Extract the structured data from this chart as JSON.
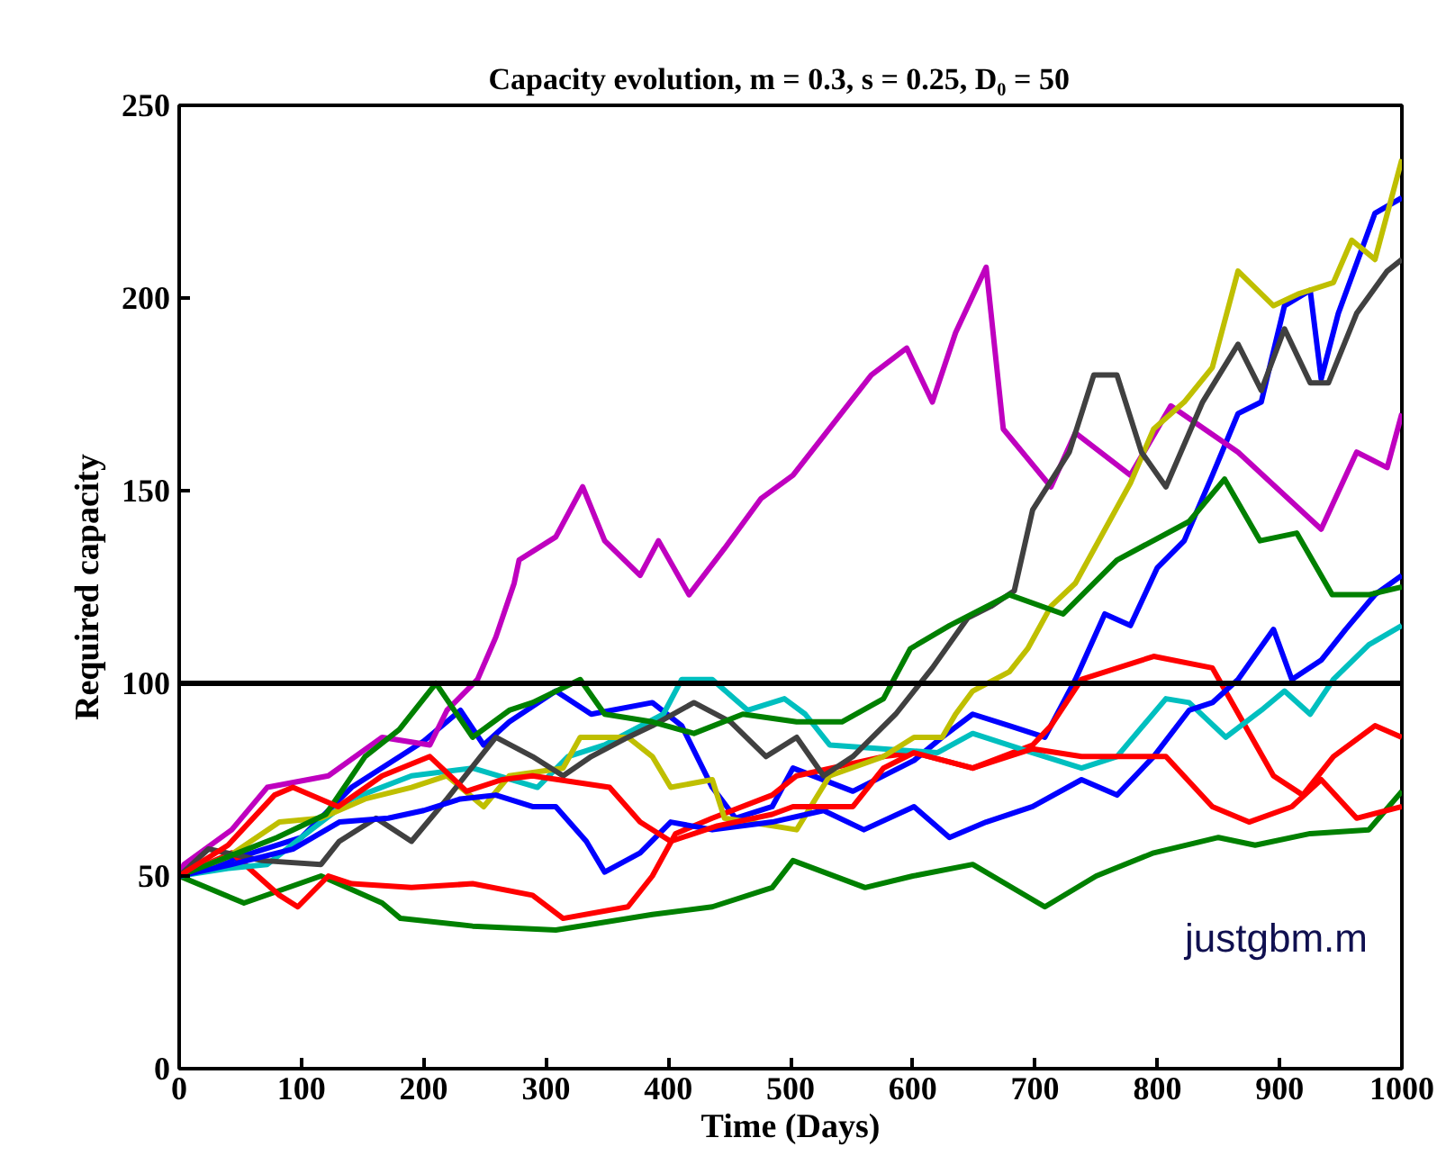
{
  "chart_data": {
    "type": "line",
    "title": "Capacity evolution,  m = 0.3,  s = 0.25,  D₀ = 50",
    "xlabel": "Time (Days)",
    "ylabel": "Required capacity",
    "xlim": [
      0,
      1000
    ],
    "ylim": [
      0,
      250
    ],
    "xticks": [
      0,
      100,
      200,
      300,
      400,
      500,
      600,
      700,
      800,
      900,
      1000
    ],
    "yticks": [
      0,
      50,
      100,
      150,
      200,
      250
    ],
    "grid": false,
    "marker": "none",
    "line_style": "solid",
    "ref_lines": [
      {
        "axis": "y",
        "value": 100,
        "color": "#000000",
        "line_style": "solid"
      }
    ],
    "annotations": [
      "justgbm.m"
    ],
    "series": [
      {
        "color": "#0000ff",
        "x": [
          0,
          50,
          100,
          141,
          200,
          230,
          249,
          270,
          308,
          337,
          387,
          411,
          436,
          455,
          485,
          502,
          551,
          601,
          624,
          649,
          679,
          708,
          733,
          757,
          778,
          800,
          822,
          845,
          866,
          885,
          904,
          925,
          934,
          948,
          978,
          1000
        ],
        "values": [
          50,
          55,
          60,
          73,
          85,
          93,
          84,
          90,
          98,
          92,
          95,
          89,
          73,
          65,
          68,
          78,
          72,
          80,
          86,
          92,
          89,
          86,
          101,
          118,
          115,
          130,
          137,
          154,
          170,
          173,
          198,
          202,
          179,
          196,
          222,
          226
        ]
      },
      {
        "color": "#008000",
        "x": [
          0,
          53,
          116,
          166,
          181,
          240,
          308,
          387,
          436,
          485,
          502,
          561,
          600,
          649,
          708,
          750,
          797,
          850,
          880,
          925,
          973,
          1000
        ],
        "values": [
          50,
          43,
          50,
          43,
          39,
          37,
          36,
          40,
          42,
          47,
          54,
          47,
          50,
          53,
          42,
          50,
          56,
          60,
          58,
          61,
          62,
          72
        ]
      },
      {
        "color": "#ff0000",
        "x": [
          0,
          43,
          82,
          97,
          122,
          141,
          190,
          240,
          289,
          314,
          367,
          387,
          406,
          436,
          485,
          505,
          576,
          601,
          649,
          698,
          713,
          738,
          797,
          845,
          895,
          919,
          944,
          978,
          1000
        ],
        "values": [
          50,
          56,
          45,
          42,
          50,
          48,
          47,
          48,
          45,
          39,
          42,
          50,
          61,
          65,
          71,
          76,
          81,
          82,
          78,
          84,
          89,
          101,
          107,
          104,
          76,
          71,
          81,
          89,
          86
        ]
      },
      {
        "color": "#00bfbf",
        "x": [
          0,
          40,
          72,
          108,
          141,
          190,
          240,
          293,
          318,
          348,
          396,
          411,
          436,
          465,
          495,
          512,
          532,
          620,
          649,
          698,
          738,
          767,
          807,
          826,
          856,
          885,
          904,
          925,
          944,
          973,
          1000
        ],
        "values": [
          50,
          52,
          53,
          62,
          70,
          76,
          78,
          73,
          81,
          84,
          92,
          101,
          101,
          93,
          96,
          92,
          84,
          82,
          87,
          82,
          78,
          81,
          96,
          95,
          86,
          93,
          98,
          92,
          101,
          110,
          115
        ]
      },
      {
        "color": "#bf00bf",
        "x": [
          0,
          4,
          43,
          72,
          122,
          166,
          205,
          219,
          244,
          259,
          274,
          278,
          308,
          330,
          348,
          377,
          392,
          417,
          446,
          476,
          502,
          566,
          595,
          616,
          635,
          660,
          674,
          713,
          733,
          778,
          811,
          866,
          934,
          963,
          988,
          1000
        ],
        "values": [
          50,
          53,
          62,
          73,
          76,
          86,
          84,
          93,
          101,
          112,
          126,
          132,
          138,
          151,
          137,
          128,
          137,
          123,
          135,
          148,
          154,
          180,
          187,
          173,
          191,
          208,
          166,
          151,
          165,
          154,
          172,
          160,
          140,
          160,
          156,
          170
        ]
      },
      {
        "color": "#bfbf00",
        "x": [
          0,
          40,
          82,
          116,
          152,
          190,
          219,
          249,
          270,
          314,
          328,
          367,
          387,
          402,
          436,
          446,
          505,
          532,
          576,
          601,
          624,
          635,
          649,
          679,
          694,
          713,
          733,
          778,
          797,
          822,
          845,
          866,
          895,
          915,
          944,
          959,
          978,
          1000
        ],
        "values": [
          50,
          55,
          64,
          65,
          70,
          73,
          76,
          68,
          76,
          78,
          86,
          86,
          81,
          73,
          75,
          65,
          62,
          76,
          81,
          86,
          86,
          92,
          98,
          103,
          109,
          120,
          126,
          152,
          166,
          173,
          182,
          207,
          198,
          201,
          204,
          215,
          210,
          236
        ]
      },
      {
        "color": "#404040",
        "x": [
          0,
          24,
          68,
          116,
          131,
          161,
          190,
          219,
          259,
          289,
          314,
          337,
          367,
          387,
          421,
          451,
          480,
          505,
          527,
          551,
          586,
          616,
          645,
          664,
          683,
          698,
          728,
          748,
          767,
          787,
          807,
          837,
          866,
          885,
          904,
          925,
          940,
          963,
          988,
          1000
        ],
        "values": [
          50,
          57,
          54,
          53,
          59,
          65,
          59,
          70,
          86,
          81,
          76,
          81,
          86,
          89,
          95,
          90,
          81,
          86,
          76,
          81,
          92,
          104,
          117,
          120,
          124,
          145,
          160,
          180,
          180,
          160,
          151,
          173,
          188,
          176,
          192,
          178,
          178,
          196,
          207,
          210
        ]
      },
      {
        "color": "#0000ff",
        "x": [
          0,
          43,
          93,
          131,
          171,
          200,
          230,
          259,
          289,
          308,
          333,
          348,
          377,
          402,
          436,
          485,
          527,
          560,
          601,
          630,
          660,
          698,
          738,
          767,
          797,
          826,
          845,
          866,
          895,
          910,
          934,
          954,
          978,
          1000
        ],
        "values": [
          50,
          53,
          57,
          64,
          65,
          67,
          70,
          71,
          68,
          68,
          59,
          51,
          56,
          64,
          62,
          64,
          67,
          62,
          68,
          60,
          64,
          68,
          75,
          71,
          81,
          93,
          95,
          101,
          114,
          101,
          106,
          114,
          123,
          128
        ]
      },
      {
        "color": "#008000",
        "x": [
          0,
          40,
          80,
          120,
          152,
          180,
          210,
          240,
          270,
          289,
          328,
          348,
          387,
          421,
          461,
          505,
          542,
          576,
          598,
          630,
          679,
          723,
          767,
          826,
          855,
          884,
          914,
          943,
          973,
          1000
        ],
        "values": [
          50,
          55,
          60,
          66,
          81,
          88,
          100,
          86,
          93,
          95,
          101,
          92,
          90,
          87,
          92,
          90,
          90,
          96,
          109,
          115,
          123,
          118,
          132,
          142,
          153,
          137,
          139,
          123,
          123,
          125
        ]
      },
      {
        "color": "#ff0000",
        "x": [
          0,
          40,
          78,
          93,
          130,
          166,
          205,
          235,
          264,
          289,
          352,
          377,
          402,
          440,
          485,
          502,
          551,
          576,
          601,
          649,
          698,
          738,
          807,
          845,
          875,
          910,
          934,
          963,
          1000
        ],
        "values": [
          50,
          58,
          71,
          73,
          68,
          76,
          81,
          72,
          75,
          76,
          73,
          64,
          59,
          63,
          66,
          68,
          68,
          78,
          82,
          78,
          83,
          81,
          81,
          68,
          64,
          68,
          75,
          65,
          68
        ]
      }
    ]
  }
}
